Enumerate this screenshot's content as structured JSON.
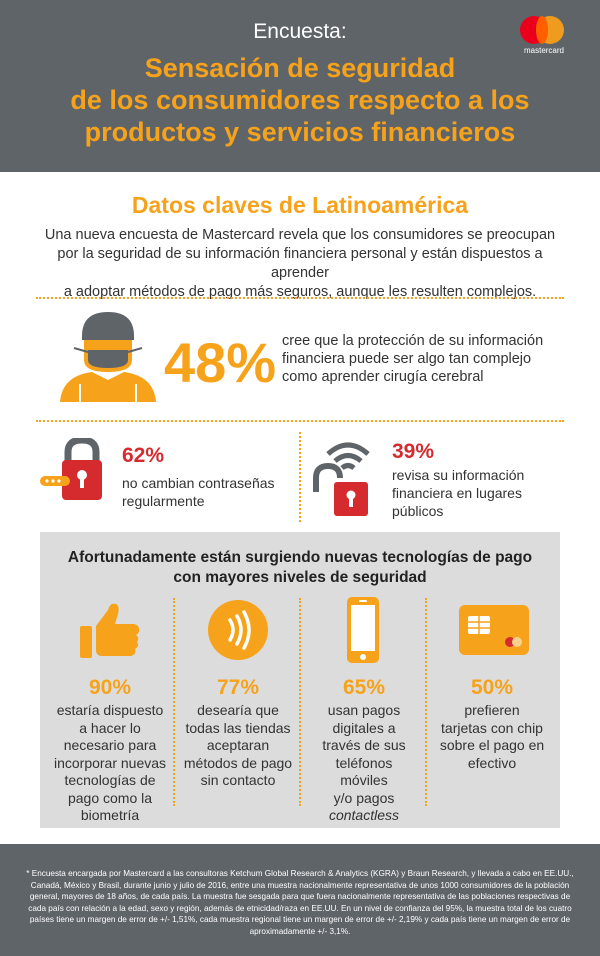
{
  "header": {
    "kicker": "Encuesta:",
    "title_lines": [
      "Sensación de seguridad",
      "de los consumidores respecto a los",
      "productos y servicios financieros"
    ],
    "brand": "mastercard"
  },
  "key_data": {
    "title": "Datos claves de Latinoamérica",
    "intro_lines": [
      "Una nueva encuesta de Mastercard revela que los consumidores se preocupan",
      "por la seguridad de su información financiera personal y están dispuestos a aprender",
      "a adoptar métodos de pago más seguros, aunque les resulten complejos."
    ]
  },
  "stat_48": {
    "value": "48%",
    "lines": [
      "cree que la protección de su información",
      "financiera puede ser algo tan complejo",
      "como aprender cirugía cerebral"
    ]
  },
  "stat_62": {
    "value": "62%",
    "lines": [
      "no cambian contraseñas",
      "regularmente"
    ]
  },
  "stat_39": {
    "value": "39%",
    "lines": [
      "revisa su información",
      "financiera en lugares",
      "públicos"
    ]
  },
  "tech": {
    "title_lines": [
      "Afortunadamente están surgiendo nuevas tecnologías de pago",
      "con mayores niveles de seguridad"
    ],
    "items": [
      {
        "value": "90%",
        "lines": [
          "estaría dispuesto",
          "a hacer lo",
          "necesario para",
          "incorporar nuevas",
          "tecnologías de",
          "pago como la",
          "biometría"
        ],
        "icon": "thumbs-up-icon"
      },
      {
        "value": "77%",
        "lines": [
          "desearía que",
          "todas las tiendas",
          "aceptaran",
          "métodos de pago",
          "sin contacto"
        ],
        "icon": "contactless-icon"
      },
      {
        "value": "65%",
        "lines": [
          "usan pagos",
          "digitales a",
          "través de sus",
          "teléfonos",
          "móviles",
          "y/o pagos"
        ],
        "italic_line": "contactless",
        "icon": "mobile-phone-icon"
      },
      {
        "value": "50%",
        "lines": [
          "prefieren",
          "tarjetas con chip",
          "sobre el pago en",
          "efectivo"
        ],
        "icon": "chip-card-icon"
      }
    ]
  },
  "footer": {
    "note": "* Encuesta encargada por Mastercard a las consultoras Ketchum Global Research & Analytics (KGRA) y Braun Research, y llevada a cabo en EE.UU., Canadá, México y Brasil, durante junio y julio de 2016, entre una muestra nacionalmente representativa de unos 1000 consumidores de la población general, mayores de 18 años, de cada país. La muestra fue sesgada para que fuera nacionalmente representativa de las poblaciones respectivas de cada país con relación a la edad, sexo y región, además de etnicidad/raza en EE.UU. En un nivel de confianza del 95%, la muestra total de los cuatro países tiene un margen de error de +/- 1,51%, cada muestra regional tiene un margen de error de +/- 2,19% y cada país tiene un margen de error de aproximadamente +/- 3,1%."
  },
  "colors": {
    "orange": "#f7a21b",
    "red": "#d52b2f",
    "header_gray": "#5f6469",
    "panel_gray": "#dcdcdc"
  }
}
